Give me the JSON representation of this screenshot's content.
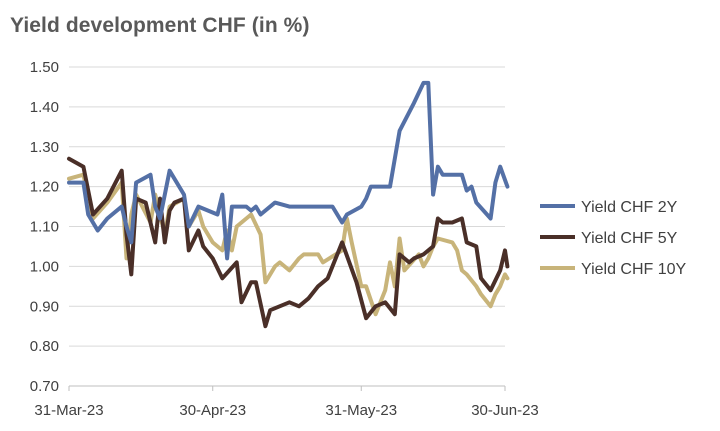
{
  "chart_data": {
    "type": "line",
    "title": "Yield development CHF (in %)",
    "xlabel": "",
    "ylabel": "",
    "ylim": [
      0.7,
      1.5
    ],
    "y_ticks": [
      "1.50",
      "1.40",
      "1.30",
      "1.20",
      "1.10",
      "1.00",
      "0.90",
      "0.80",
      "0.70"
    ],
    "x_ticks": [
      "31-Mar-23",
      "30-Apr-23",
      "31-May-23",
      "30-Jun-23"
    ],
    "x_tick_positions": [
      0,
      30,
      61,
      91
    ],
    "x_range": [
      0,
      91
    ],
    "legend_position": "right",
    "grid": "horizontal",
    "series": [
      {
        "name": "Yield CHF 2Y",
        "color": "#5470a6",
        "points": [
          [
            0,
            1.21
          ],
          [
            3,
            1.21
          ],
          [
            4,
            1.13
          ],
          [
            6,
            1.09
          ],
          [
            8,
            1.12
          ],
          [
            11,
            1.15
          ],
          [
            12,
            1.1
          ],
          [
            13,
            1.06
          ],
          [
            14,
            1.21
          ],
          [
            17,
            1.23
          ],
          [
            18,
            1.15
          ],
          [
            19,
            1.12
          ],
          [
            21,
            1.24
          ],
          [
            24,
            1.18
          ],
          [
            25,
            1.1
          ],
          [
            27,
            1.15
          ],
          [
            31,
            1.13
          ],
          [
            32,
            1.18
          ],
          [
            33,
            1.02
          ],
          [
            34,
            1.15
          ],
          [
            37,
            1.15
          ],
          [
            38,
            1.14
          ],
          [
            39,
            1.15
          ],
          [
            40,
            1.13
          ],
          [
            43,
            1.16
          ],
          [
            46,
            1.15
          ],
          [
            55,
            1.15
          ],
          [
            57,
            1.11
          ],
          [
            58,
            1.13
          ],
          [
            61,
            1.15
          ],
          [
            62,
            1.17
          ],
          [
            63,
            1.2
          ],
          [
            67,
            1.2
          ],
          [
            69,
            1.34
          ],
          [
            72,
            1.41
          ],
          [
            74,
            1.46
          ],
          [
            75,
            1.46
          ],
          [
            76,
            1.18
          ],
          [
            77,
            1.25
          ],
          [
            78,
            1.23
          ],
          [
            82,
            1.23
          ],
          [
            83,
            1.19
          ],
          [
            84,
            1.2
          ],
          [
            85,
            1.16
          ],
          [
            88,
            1.12
          ],
          [
            89,
            1.21
          ],
          [
            90,
            1.25
          ],
          [
            92,
            1.2
          ]
        ]
      },
      {
        "name": "Yield CHF 5Y",
        "color": "#4a2f28",
        "points": [
          [
            0,
            1.27
          ],
          [
            3,
            1.25
          ],
          [
            5,
            1.13
          ],
          [
            8,
            1.17
          ],
          [
            11,
            1.24
          ],
          [
            12,
            1.08
          ],
          [
            13,
            0.98
          ],
          [
            14,
            1.17
          ],
          [
            16,
            1.16
          ],
          [
            18,
            1.06
          ],
          [
            19,
            1.17
          ],
          [
            20,
            1.06
          ],
          [
            21,
            1.14
          ],
          [
            22,
            1.16
          ],
          [
            24,
            1.17
          ],
          [
            25,
            1.04
          ],
          [
            27,
            1.09
          ],
          [
            28,
            1.05
          ],
          [
            30,
            1.02
          ],
          [
            32,
            0.97
          ],
          [
            35,
            1.01
          ],
          [
            36,
            0.91
          ],
          [
            38,
            0.96
          ],
          [
            39,
            0.96
          ],
          [
            41,
            0.85
          ],
          [
            42,
            0.89
          ],
          [
            46,
            0.91
          ],
          [
            48,
            0.9
          ],
          [
            50,
            0.92
          ],
          [
            52,
            0.95
          ],
          [
            54,
            0.97
          ],
          [
            57,
            1.06
          ],
          [
            60,
            0.96
          ],
          [
            62,
            0.87
          ],
          [
            64,
            0.9
          ],
          [
            66,
            0.91
          ],
          [
            68,
            0.88
          ],
          [
            69,
            1.03
          ],
          [
            71,
            1.01
          ],
          [
            72,
            1.02
          ],
          [
            74,
            1.03
          ],
          [
            76,
            1.05
          ],
          [
            77,
            1.12
          ],
          [
            78,
            1.11
          ],
          [
            80,
            1.11
          ],
          [
            82,
            1.12
          ],
          [
            83,
            1.06
          ],
          [
            85,
            1.05
          ],
          [
            86,
            0.97
          ],
          [
            88,
            0.94
          ],
          [
            90,
            0.99
          ],
          [
            91,
            1.04
          ],
          [
            92,
            1.0
          ]
        ]
      },
      {
        "name": "Yield CHF 10Y",
        "color": "#c8b47a",
        "points": [
          [
            0,
            1.22
          ],
          [
            3,
            1.23
          ],
          [
            5,
            1.12
          ],
          [
            8,
            1.16
          ],
          [
            11,
            1.21
          ],
          [
            12,
            1.02
          ],
          [
            13,
            1.13
          ],
          [
            14,
            1.18
          ],
          [
            17,
            1.11
          ],
          [
            18,
            1.18
          ],
          [
            20,
            1.08
          ],
          [
            21,
            1.15
          ],
          [
            24,
            1.17
          ],
          [
            25,
            1.1
          ],
          [
            27,
            1.14
          ],
          [
            28,
            1.1
          ],
          [
            30,
            1.06
          ],
          [
            32,
            1.04
          ],
          [
            33,
            1.09
          ],
          [
            34,
            1.04
          ],
          [
            35,
            1.1
          ],
          [
            38,
            1.13
          ],
          [
            40,
            1.08
          ],
          [
            41,
            0.96
          ],
          [
            43,
            1.0
          ],
          [
            44,
            1.01
          ],
          [
            46,
            0.99
          ],
          [
            48,
            1.02
          ],
          [
            49,
            1.03
          ],
          [
            52,
            1.03
          ],
          [
            53,
            1.01
          ],
          [
            57,
            1.04
          ],
          [
            58,
            1.12
          ],
          [
            59,
            1.06
          ],
          [
            61,
            0.95
          ],
          [
            62,
            0.95
          ],
          [
            64,
            0.88
          ],
          [
            65,
            0.91
          ],
          [
            66,
            0.94
          ],
          [
            67,
            1.01
          ],
          [
            68,
            0.95
          ],
          [
            69,
            1.07
          ],
          [
            70,
            0.99
          ],
          [
            73,
            1.03
          ],
          [
            74,
            1.0
          ],
          [
            75,
            1.02
          ],
          [
            76,
            1.05
          ],
          [
            77,
            1.07
          ],
          [
            80,
            1.06
          ],
          [
            81,
            1.04
          ],
          [
            82,
            0.99
          ],
          [
            83,
            0.98
          ],
          [
            85,
            0.95
          ],
          [
            86,
            0.93
          ],
          [
            88,
            0.9
          ],
          [
            89,
            0.93
          ],
          [
            90,
            0.95
          ],
          [
            91,
            0.98
          ],
          [
            92,
            0.97
          ]
        ]
      }
    ]
  }
}
